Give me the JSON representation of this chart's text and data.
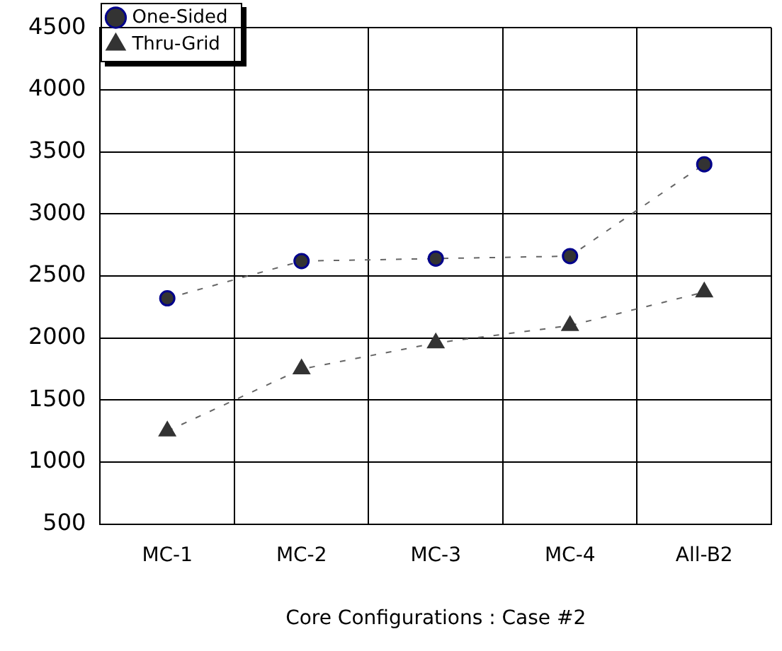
{
  "chart_data": {
    "type": "line",
    "xlabel": "Core Configurations : Case #2",
    "categories": [
      "MC-1",
      "MC-2",
      "MC-3",
      "MC-4",
      "All-B2"
    ],
    "series": [
      {
        "name": "One-Sided",
        "color": "#333333",
        "marker": "circle",
        "values": [
          2320,
          2620,
          2640,
          2660,
          3400
        ]
      },
      {
        "name": "Thru-Grid",
        "color": "#333333",
        "marker": "triangle",
        "values": [
          1250,
          1750,
          1960,
          2100,
          2370
        ]
      }
    ],
    "ylim": [
      500,
      4500
    ],
    "yticks": [
      500,
      1000,
      1500,
      2000,
      2500,
      3000,
      3500,
      4000,
      4500
    ],
    "grid": true,
    "legend": "top left",
    "line_style": "dashed"
  }
}
